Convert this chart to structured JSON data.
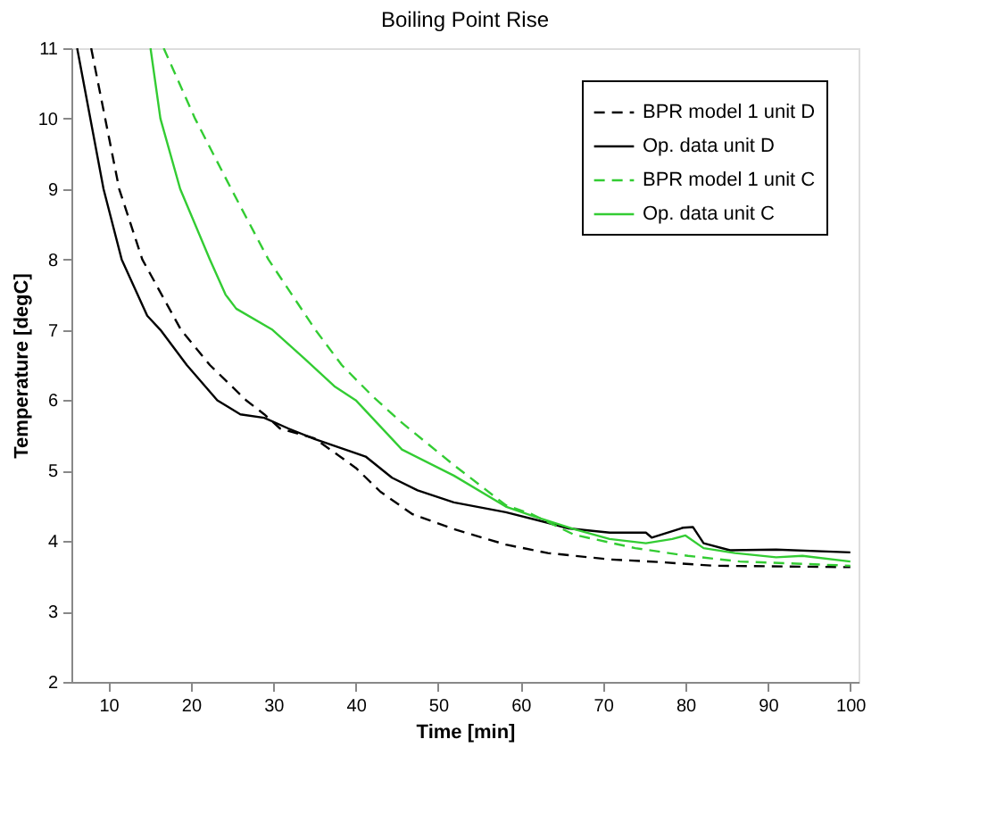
{
  "chart_data": {
    "type": "line",
    "title": "Boiling Point Rise",
    "xlabel": "Time [min]",
    "ylabel": "Temperature [degC]",
    "xlim": [
      5.5,
      101
    ],
    "ylim": [
      2,
      11
    ],
    "xticks": [
      10,
      20,
      30,
      40,
      50,
      60,
      70,
      80,
      90,
      100
    ],
    "yticks": [
      2,
      3,
      4,
      5,
      6,
      7,
      8,
      9,
      10,
      11
    ],
    "grid": false,
    "legend": "top right",
    "marker": "none",
    "series": [
      {
        "name": "BPR model 1 unit D",
        "color": "#000000",
        "line_style": "dashed",
        "x": [
          7.9,
          11.3,
          14.1,
          18.8,
          22.3,
          26.7,
          28.9,
          30.8,
          35,
          40,
          43,
          46.9,
          51.9,
          58.2,
          63.3,
          70.8,
          77.1,
          83.4,
          100
        ],
        "values": [
          11,
          9,
          8,
          7,
          6.5,
          6,
          5.8,
          5.6,
          5.46,
          5.04,
          4.7,
          4.38,
          4.17,
          3.95,
          3.83,
          3.74,
          3.7,
          3.65,
          3.63
        ]
      },
      {
        "name": "Op. data unit D",
        "color": "#000000",
        "line_style": "solid",
        "x": [
          6.2,
          9.4,
          11.6,
          14.7,
          16.3,
          19.5,
          23.2,
          26,
          28.9,
          31.8,
          35,
          41.2,
          44.4,
          47.5,
          51.9,
          58.2,
          63.3,
          65.8,
          70.8,
          75.2,
          75.9,
          79.7,
          80.9,
          82.2,
          85.4,
          91,
          100
        ],
        "values": [
          11,
          9,
          8,
          7.2,
          7,
          6.5,
          6,
          5.8,
          5.75,
          5.6,
          5.45,
          5.2,
          4.9,
          4.72,
          4.55,
          4.41,
          4.26,
          4.18,
          4.12,
          4.12,
          4.05,
          4.19,
          4.2,
          3.97,
          3.87,
          3.88,
          3.84
        ]
      },
      {
        "name": "BPR model 1 unit C",
        "color": "#33cc33",
        "line_style": "dashed",
        "x": [
          16.7,
          20.5,
          24.9,
          29.4,
          35.1,
          38.3,
          42.1,
          45.6,
          51.9,
          58.2,
          61.4,
          66.5,
          73.9,
          80.3,
          86.6,
          100
        ],
        "values": [
          11,
          10,
          9,
          8,
          7,
          6.5,
          6.05,
          5.68,
          5.08,
          4.51,
          4.38,
          4.09,
          3.9,
          3.79,
          3.71,
          3.65
        ]
      },
      {
        "name": "Op. data unit C",
        "color": "#33cc33",
        "line_style": "solid",
        "x": [
          15.1,
          16.3,
          18.7,
          22.3,
          24.2,
          25.5,
          29.9,
          33.7,
          37.4,
          40,
          45.6,
          51.9,
          58.2,
          61.4,
          66.5,
          70.8,
          75.2,
          78.4,
          80,
          82.2,
          86,
          91,
          94.2,
          100
        ],
        "values": [
          11,
          10,
          9,
          8,
          7.5,
          7.3,
          7,
          6.6,
          6.2,
          6,
          5.3,
          4.93,
          4.49,
          4.36,
          4.17,
          4.03,
          3.97,
          4.03,
          4.08,
          3.9,
          3.83,
          3.77,
          3.79,
          3.71
        ]
      }
    ]
  }
}
